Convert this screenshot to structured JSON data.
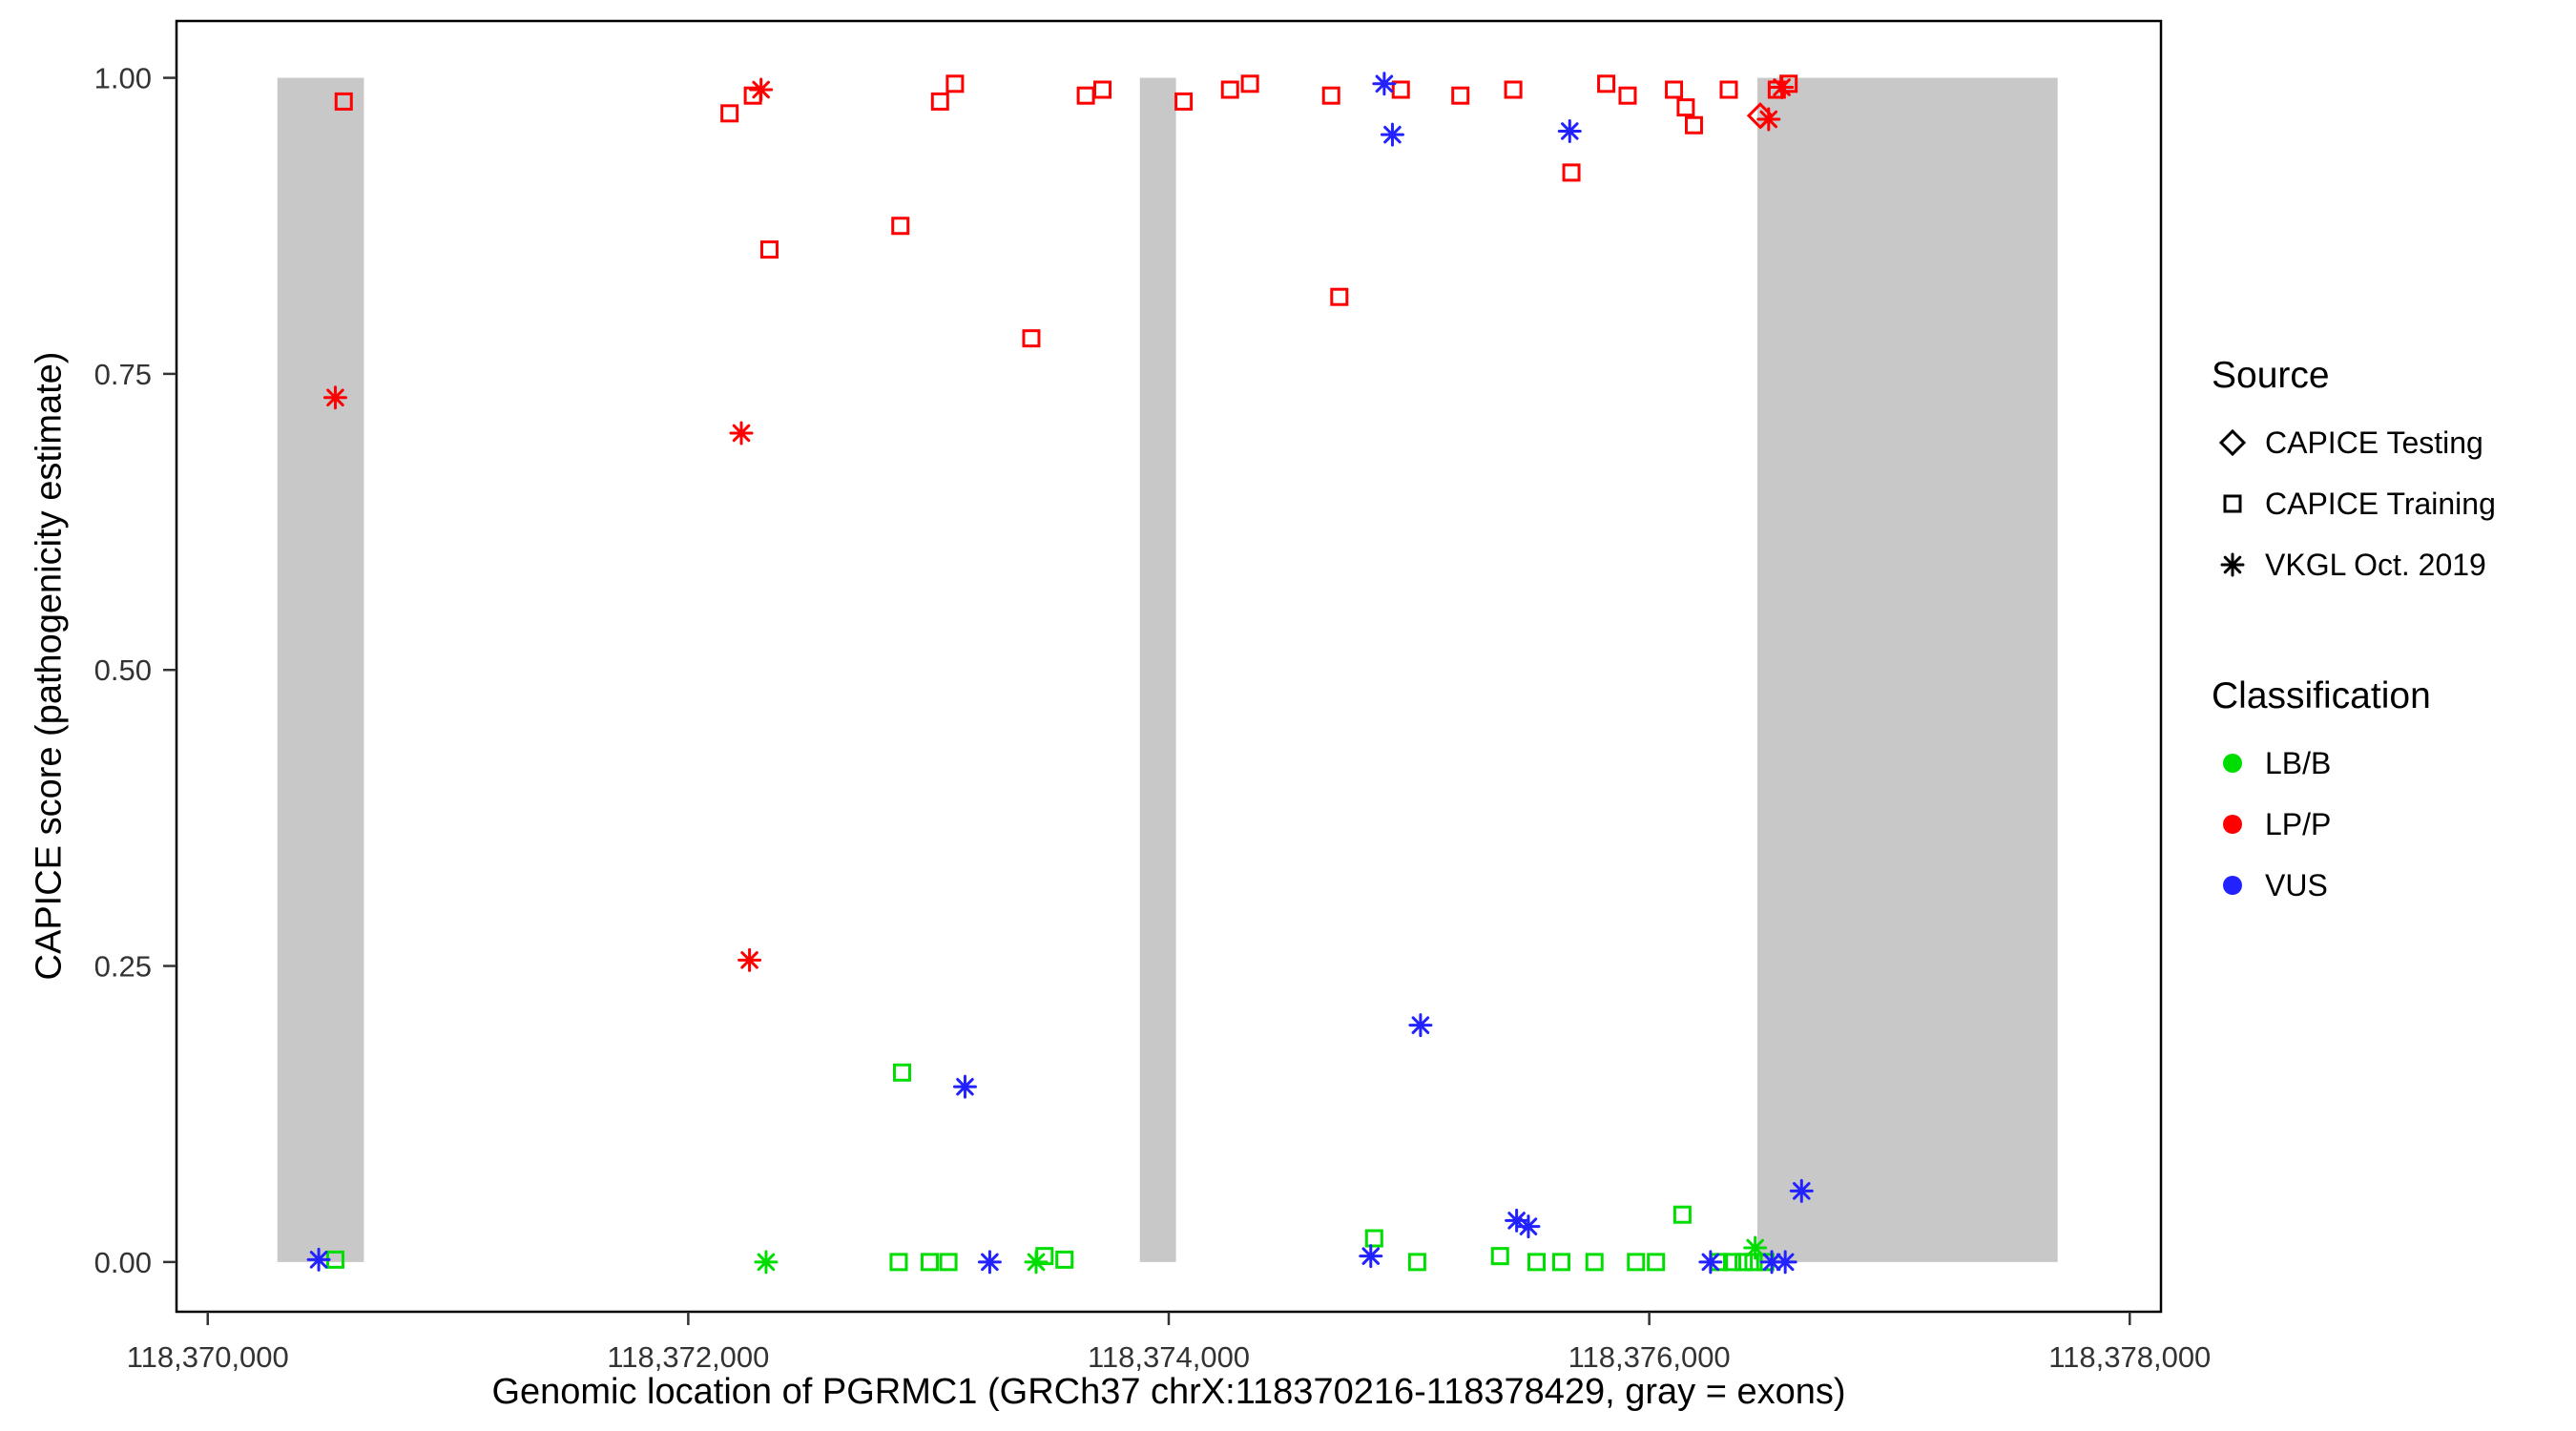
{
  "chart_data": {
    "type": "scatter",
    "title": "",
    "xlabel": "Genomic location of PGRMC1 (GRCh37 chrX:118370216-118378429, gray = exons)",
    "ylabel": "CAPICE score (pathogenicity estimate)",
    "xlim": [
      118369870,
      118378130
    ],
    "ylim": [
      -0.042,
      1.048
    ],
    "x_ticks": [
      118370000,
      118372000,
      118374000,
      118376000,
      118378000
    ],
    "x_tick_labels": [
      "118,370,000",
      "118,372,000",
      "118,374,000",
      "118,376,000",
      "118,378,000"
    ],
    "y_ticks": [
      0,
      0.25,
      0.5,
      0.75,
      1.0
    ],
    "y_tick_labels": [
      "0.00",
      "0.25",
      "0.50",
      "0.75",
      "1.00"
    ],
    "grid": false,
    "legend_position": "right",
    "exons": [
      [
        118370290,
        118370650
      ],
      [
        118373880,
        118374030
      ],
      [
        118376450,
        118377700
      ]
    ],
    "colors": {
      "exon": "#c8c8c8",
      "panel_border": "#000000",
      "tick_text": "#333333",
      "lbb": "#00dd00",
      "lpp": "#ff0000",
      "vus": "#2222ff",
      "legend_shape": "#000000"
    },
    "series": [
      {
        "source": "CAPICE Testing",
        "shape": "diamond",
        "classification": "LP/P",
        "color": "#ff0000",
        "points": [
          [
            118376462,
            0.968
          ]
        ]
      },
      {
        "source": "CAPICE Training",
        "shape": "square",
        "classification": "LP/P",
        "color": "#ff0000",
        "points": [
          [
            118370566,
            0.98
          ],
          [
            118372172,
            0.97
          ],
          [
            118372269,
            0.985
          ],
          [
            118372338,
            0.855
          ],
          [
            118372883,
            0.875
          ],
          [
            118373048,
            0.98
          ],
          [
            118373110,
            0.995
          ],
          [
            118373428,
            0.78
          ],
          [
            118373655,
            0.985
          ],
          [
            118373724,
            0.99
          ],
          [
            118374062,
            0.98
          ],
          [
            118374255,
            0.99
          ],
          [
            118374338,
            0.995
          ],
          [
            118374676,
            0.985
          ],
          [
            118374710,
            0.815
          ],
          [
            118374966,
            0.99
          ],
          [
            118375214,
            0.985
          ],
          [
            118375434,
            0.99
          ],
          [
            118375676,
            0.92
          ],
          [
            118375821,
            0.995
          ],
          [
            118375910,
            0.985
          ],
          [
            118376103,
            0.99
          ],
          [
            118376152,
            0.975
          ],
          [
            118376186,
            0.96
          ],
          [
            118376331,
            0.99
          ],
          [
            118376531,
            0.99
          ],
          [
            118376580,
            0.995
          ]
        ]
      },
      {
        "source": "CAPICE Training",
        "shape": "square",
        "classification": "LB/B",
        "color": "#00dd00",
        "points": [
          [
            118370531,
            0.002
          ],
          [
            118372876,
            0.0
          ],
          [
            118372890,
            0.16
          ],
          [
            118373005,
            0.0
          ],
          [
            118373083,
            0.0
          ],
          [
            118373483,
            0.005
          ],
          [
            118373566,
            0.002
          ],
          [
            118374855,
            0.02
          ],
          [
            118375034,
            0.0
          ],
          [
            118375379,
            0.005
          ],
          [
            118375531,
            0.0
          ],
          [
            118375634,
            0.0
          ],
          [
            118375772,
            0.0
          ],
          [
            118375945,
            0.0
          ],
          [
            118376028,
            0.0
          ],
          [
            118376138,
            0.04
          ],
          [
            118376290,
            0.0
          ],
          [
            118376345,
            0.0
          ],
          [
            118376393,
            0.0
          ],
          [
            118376434,
            0.0
          ],
          [
            118376483,
            0.0
          ]
        ]
      },
      {
        "source": "VKGL Oct. 2019",
        "shape": "asterisk",
        "classification": "LP/P",
        "color": "#ff0000",
        "points": [
          [
            118370531,
            0.73
          ],
          [
            118372221,
            0.7
          ],
          [
            118372255,
            0.255
          ],
          [
            118372303,
            0.99
          ],
          [
            118376497,
            0.965
          ],
          [
            118376552,
            0.992
          ]
        ]
      },
      {
        "source": "VKGL Oct. 2019",
        "shape": "asterisk",
        "classification": "LB/B",
        "color": "#00dd00",
        "points": [
          [
            118372324,
            0.0
          ],
          [
            118373448,
            0.0
          ],
          [
            118376441,
            0.012
          ]
        ]
      },
      {
        "source": "VKGL Oct. 2019",
        "shape": "asterisk",
        "classification": "VUS",
        "color": "#2222ff",
        "points": [
          [
            118370462,
            0.002
          ],
          [
            118373152,
            0.148
          ],
          [
            118373255,
            0.0
          ],
          [
            118374841,
            0.005
          ],
          [
            118374897,
            0.995
          ],
          [
            118374931,
            0.952
          ],
          [
            118375048,
            0.2
          ],
          [
            118375448,
            0.035
          ],
          [
            118375497,
            0.03
          ],
          [
            118375669,
            0.955
          ],
          [
            118376255,
            0.0
          ],
          [
            118376510,
            0.0
          ],
          [
            118376566,
            0.0
          ],
          [
            118376634,
            0.06
          ]
        ]
      }
    ],
    "legend": {
      "source_title": "Source",
      "source_items": [
        {
          "label": "CAPICE Testing",
          "shape": "diamond",
          "color": "#000000"
        },
        {
          "label": "CAPICE Training",
          "shape": "square",
          "color": "#000000"
        },
        {
          "label": "VKGL Oct. 2019",
          "shape": "asterisk",
          "color": "#000000"
        }
      ],
      "classification_title": "Classification",
      "classification_items": [
        {
          "label": "LB/B",
          "shape": "dot",
          "color": "#00dd00"
        },
        {
          "label": "LP/P",
          "shape": "dot",
          "color": "#ff0000"
        },
        {
          "label": "VUS",
          "shape": "dot",
          "color": "#2222ff"
        }
      ]
    }
  }
}
